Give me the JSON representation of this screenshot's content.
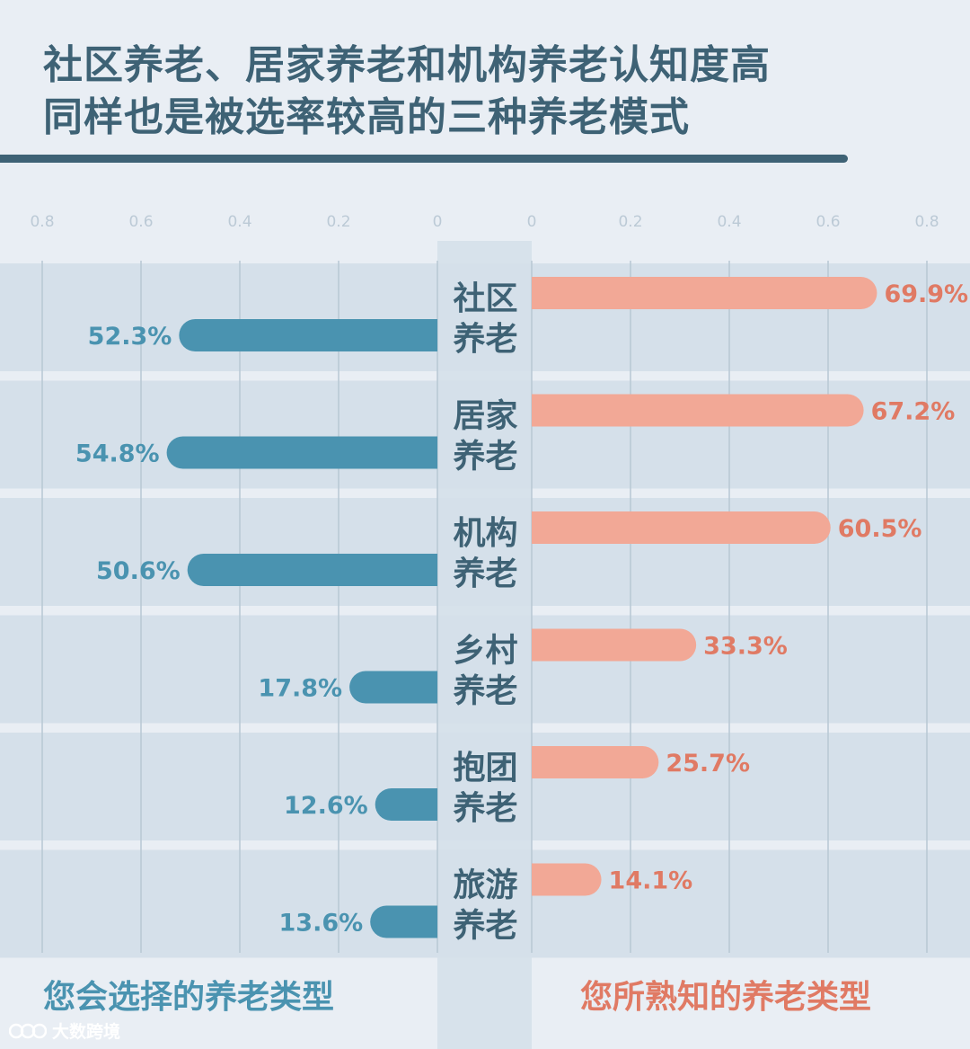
{
  "title": {
    "line1": "社区养老、居家养老和机构养老认知度高",
    "line2": "同样也是被选率较高的三种养老模式"
  },
  "legend": {
    "left_label": "您会选择的养老类型",
    "right_label": "您所熟知的养老类型"
  },
  "watermark": {
    "text": "大数跨境",
    "icon": "logo-icon"
  },
  "colors": {
    "title": "#3e6275",
    "left_series": "#4a93b0",
    "right_series": "#f2a896",
    "right_label": "#e07a64",
    "band": "#d5e0ea",
    "background": "#e9eef4",
    "grid": "#b8c7d3"
  },
  "chart_data": {
    "type": "bar",
    "orientation": "horizontal-butterfly",
    "categories": [
      [
        "社区",
        "养老"
      ],
      [
        "居家",
        "养老"
      ],
      [
        "机构",
        "养老"
      ],
      [
        "乡村",
        "养老"
      ],
      [
        "抱团",
        "养老"
      ],
      [
        "旅游",
        "养老"
      ]
    ],
    "series": [
      {
        "name": "您会选择的养老类型",
        "side": "left",
        "values": [
          0.523,
          0.548,
          0.506,
          0.178,
          0.126,
          0.136
        ],
        "labels": [
          "52.3%",
          "54.8%",
          "50.6%",
          "17.8%",
          "12.6%",
          "13.6%"
        ]
      },
      {
        "name": "您所熟知的养老类型",
        "side": "right",
        "values": [
          0.699,
          0.672,
          0.605,
          0.333,
          0.257,
          0.141
        ],
        "labels": [
          "69.9%",
          "67.2%",
          "60.5%",
          "33.3%",
          "25.7%",
          "14.1%"
        ]
      }
    ],
    "left_ticks": [
      "0.8",
      "0.6",
      "0.4",
      "0.2",
      "0"
    ],
    "right_ticks": [
      "0",
      "0.2",
      "0.4",
      "0.6",
      "0.8"
    ],
    "xlim": [
      0,
      0.8
    ],
    "grid": true
  }
}
